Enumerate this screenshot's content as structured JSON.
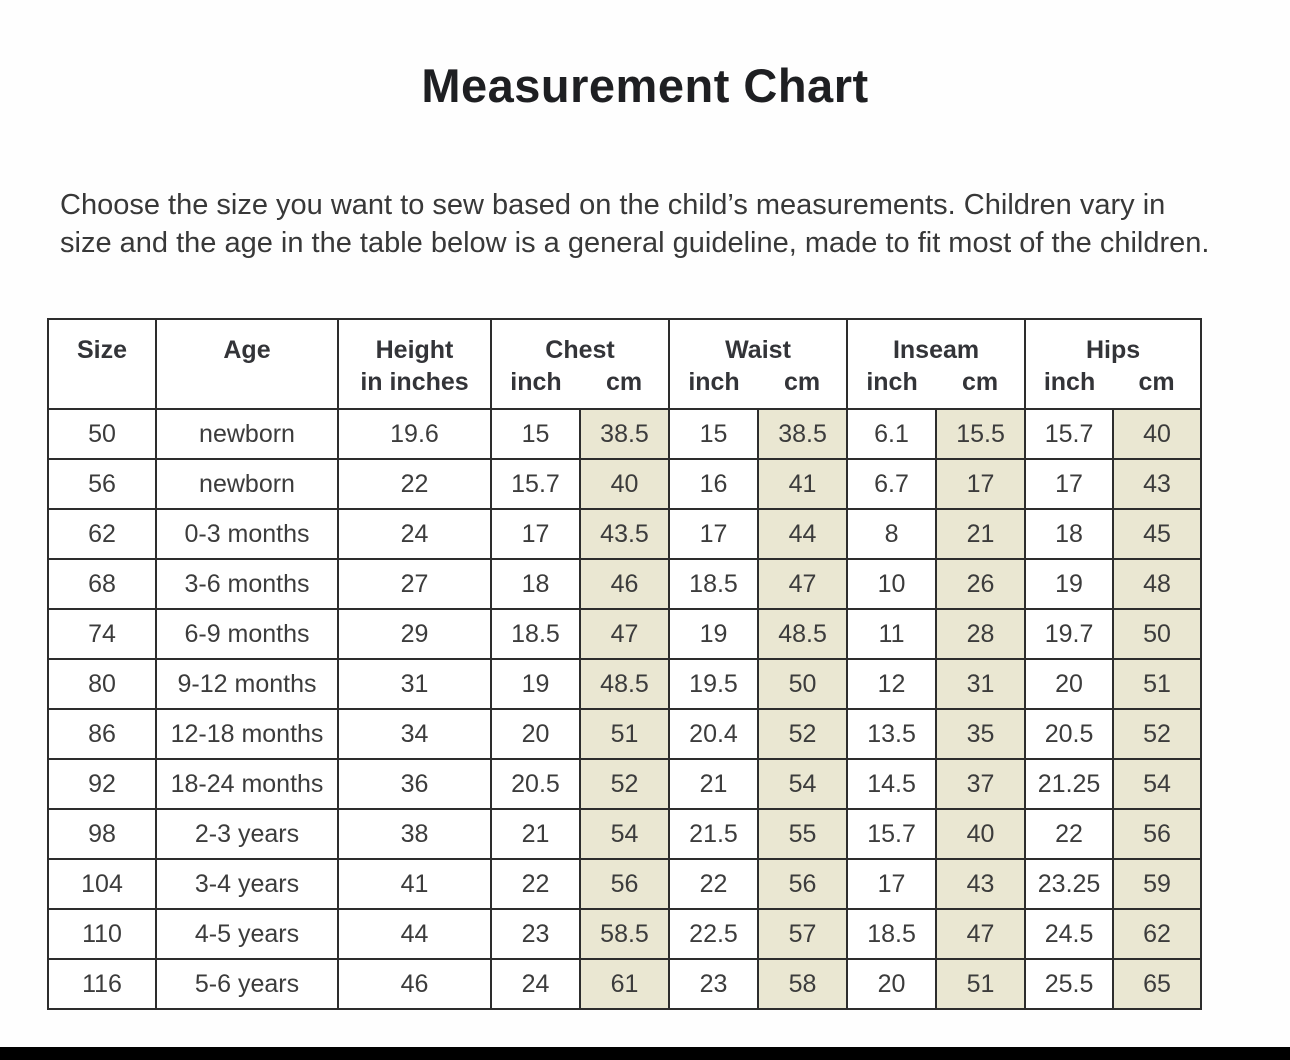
{
  "page": {
    "title": "Measurement Chart",
    "intro": "Choose the size you want to sew based on the child’s measurements. Children vary in size and the age in the table below is a general guideline, made to fit most of the children."
  },
  "table": {
    "headers": {
      "size": "Size",
      "age": "Age",
      "height_line1": "Height",
      "height_line2": "in inches",
      "groups": [
        {
          "label": "Chest",
          "sub_inch": "inch",
          "sub_cm": "cm"
        },
        {
          "label": "Waist",
          "sub_inch": "inch",
          "sub_cm": "cm"
        },
        {
          "label": "Inseam",
          "sub_inch": "inch",
          "sub_cm": "cm"
        },
        {
          "label": "Hips",
          "sub_inch": "inch",
          "sub_cm": "cm"
        }
      ]
    },
    "rows": [
      {
        "size": "50",
        "age": "newborn",
        "height": "19.6",
        "chest_in": "15",
        "chest_cm": "38.5",
        "waist_in": "15",
        "waist_cm": "38.5",
        "inseam_in": "6.1",
        "inseam_cm": "15.5",
        "hips_in": "15.7",
        "hips_cm": "40"
      },
      {
        "size": "56",
        "age": "newborn",
        "height": "22",
        "chest_in": "15.7",
        "chest_cm": "40",
        "waist_in": "16",
        "waist_cm": "41",
        "inseam_in": "6.7",
        "inseam_cm": "17",
        "hips_in": "17",
        "hips_cm": "43"
      },
      {
        "size": "62",
        "age": "0-3 months",
        "height": "24",
        "chest_in": "17",
        "chest_cm": "43.5",
        "waist_in": "17",
        "waist_cm": "44",
        "inseam_in": "8",
        "inseam_cm": "21",
        "hips_in": "18",
        "hips_cm": "45"
      },
      {
        "size": "68",
        "age": "3-6 months",
        "height": "27",
        "chest_in": "18",
        "chest_cm": "46",
        "waist_in": "18.5",
        "waist_cm": "47",
        "inseam_in": "10",
        "inseam_cm": "26",
        "hips_in": "19",
        "hips_cm": "48"
      },
      {
        "size": "74",
        "age": "6-9 months",
        "height": "29",
        "chest_in": "18.5",
        "chest_cm": "47",
        "waist_in": "19",
        "waist_cm": "48.5",
        "inseam_in": "11",
        "inseam_cm": "28",
        "hips_in": "19.7",
        "hips_cm": "50"
      },
      {
        "size": "80",
        "age": "9-12 months",
        "height": "31",
        "chest_in": "19",
        "chest_cm": "48.5",
        "waist_in": "19.5",
        "waist_cm": "50",
        "inseam_in": "12",
        "inseam_cm": "31",
        "hips_in": "20",
        "hips_cm": "51"
      },
      {
        "size": "86",
        "age": "12-18 months",
        "height": "34",
        "chest_in": "20",
        "chest_cm": "51",
        "waist_in": "20.4",
        "waist_cm": "52",
        "inseam_in": "13.5",
        "inseam_cm": "35",
        "hips_in": "20.5",
        "hips_cm": "52"
      },
      {
        "size": "92",
        "age": "18-24 months",
        "height": "36",
        "chest_in": "20.5",
        "chest_cm": "52",
        "waist_in": "21",
        "waist_cm": "54",
        "inseam_in": "14.5",
        "inseam_cm": "37",
        "hips_in": "21.25",
        "hips_cm": "54"
      },
      {
        "size": "98",
        "age": "2-3 years",
        "height": "38",
        "chest_in": "21",
        "chest_cm": "54",
        "waist_in": "21.5",
        "waist_cm": "55",
        "inseam_in": "15.7",
        "inseam_cm": "40",
        "hips_in": "22",
        "hips_cm": "56"
      },
      {
        "size": "104",
        "age": "3-4 years",
        "height": "41",
        "chest_in": "22",
        "chest_cm": "56",
        "waist_in": "22",
        "waist_cm": "56",
        "inseam_in": "17",
        "inseam_cm": "43",
        "hips_in": "23.25",
        "hips_cm": "59"
      },
      {
        "size": "110",
        "age": "4-5 years",
        "height": "44",
        "chest_in": "23",
        "chest_cm": "58.5",
        "waist_in": "22.5",
        "waist_cm": "57",
        "inseam_in": "18.5",
        "inseam_cm": "47",
        "hips_in": "24.5",
        "hips_cm": "62"
      },
      {
        "size": "116",
        "age": "5-6 years",
        "height": "46",
        "chest_in": "24",
        "chest_cm": "61",
        "waist_in": "23",
        "waist_cm": "58",
        "inseam_in": "20",
        "inseam_cm": "51",
        "hips_in": "25.5",
        "hips_cm": "65"
      }
    ]
  },
  "colors": {
    "cm_column_highlight": "#eae7d2",
    "table_border": "#2d2d2d",
    "body_text": "#3a3a3a",
    "title_text": "#1e1f22",
    "bottom_bar": "#000000"
  }
}
